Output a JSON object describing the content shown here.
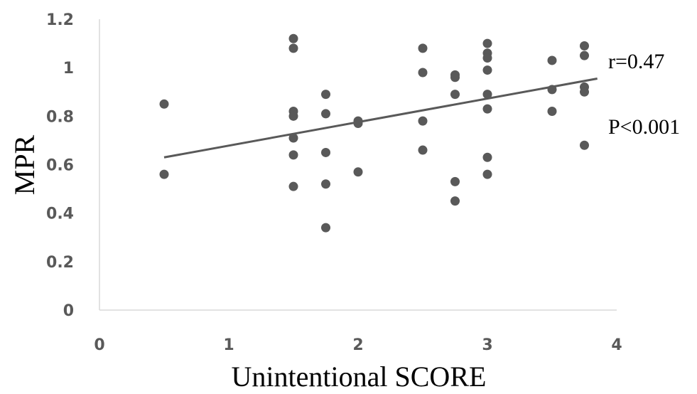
{
  "chart_data": {
    "type": "scatter",
    "xlabel": "Unintentional SCORE",
    "ylabel": "MPR",
    "xlim": [
      0,
      4
    ],
    "ylim": [
      0,
      1.2
    ],
    "x_ticks": [
      "0",
      "1",
      "2",
      "3",
      "4"
    ],
    "y_ticks": [
      "0",
      "0.2",
      "0.4",
      "0.6",
      "0.8",
      "1",
      "1.2"
    ],
    "grid": false,
    "colors": {
      "points": "#595959",
      "trendline": "#595959",
      "axis": "#d9d9d9"
    },
    "points": [
      {
        "x": 0.5,
        "y": 0.85
      },
      {
        "x": 0.5,
        "y": 0.56
      },
      {
        "x": 1.5,
        "y": 1.12
      },
      {
        "x": 1.5,
        "y": 1.08
      },
      {
        "x": 1.5,
        "y": 0.82
      },
      {
        "x": 1.5,
        "y": 0.8
      },
      {
        "x": 1.5,
        "y": 0.71
      },
      {
        "x": 1.5,
        "y": 0.64
      },
      {
        "x": 1.5,
        "y": 0.51
      },
      {
        "x": 1.75,
        "y": 0.89
      },
      {
        "x": 1.75,
        "y": 0.81
      },
      {
        "x": 1.75,
        "y": 0.65
      },
      {
        "x": 1.75,
        "y": 0.52
      },
      {
        "x": 1.75,
        "y": 0.34
      },
      {
        "x": 2.0,
        "y": 0.78
      },
      {
        "x": 2.0,
        "y": 0.77
      },
      {
        "x": 2.0,
        "y": 0.57
      },
      {
        "x": 2.5,
        "y": 1.08
      },
      {
        "x": 2.5,
        "y": 0.98
      },
      {
        "x": 2.5,
        "y": 0.78
      },
      {
        "x": 2.5,
        "y": 0.66
      },
      {
        "x": 2.75,
        "y": 0.97
      },
      {
        "x": 2.75,
        "y": 0.96
      },
      {
        "x": 2.75,
        "y": 0.89
      },
      {
        "x": 2.75,
        "y": 0.53
      },
      {
        "x": 2.75,
        "y": 0.45
      },
      {
        "x": 3.0,
        "y": 1.1
      },
      {
        "x": 3.0,
        "y": 1.06
      },
      {
        "x": 3.0,
        "y": 1.04
      },
      {
        "x": 3.0,
        "y": 0.99
      },
      {
        "x": 3.0,
        "y": 0.89
      },
      {
        "x": 3.0,
        "y": 0.83
      },
      {
        "x": 3.0,
        "y": 0.63
      },
      {
        "x": 3.0,
        "y": 0.56
      },
      {
        "x": 3.5,
        "y": 1.03
      },
      {
        "x": 3.5,
        "y": 0.91
      },
      {
        "x": 3.5,
        "y": 0.82
      },
      {
        "x": 3.75,
        "y": 1.09
      },
      {
        "x": 3.75,
        "y": 1.05
      },
      {
        "x": 3.75,
        "y": 0.92
      },
      {
        "x": 3.75,
        "y": 0.9
      },
      {
        "x": 3.75,
        "y": 0.68
      }
    ],
    "trendline": {
      "x": [
        0.5,
        3.85
      ],
      "y": [
        0.63,
        0.955
      ]
    },
    "annotations": [
      "r=0.47",
      "P<0.001"
    ]
  }
}
